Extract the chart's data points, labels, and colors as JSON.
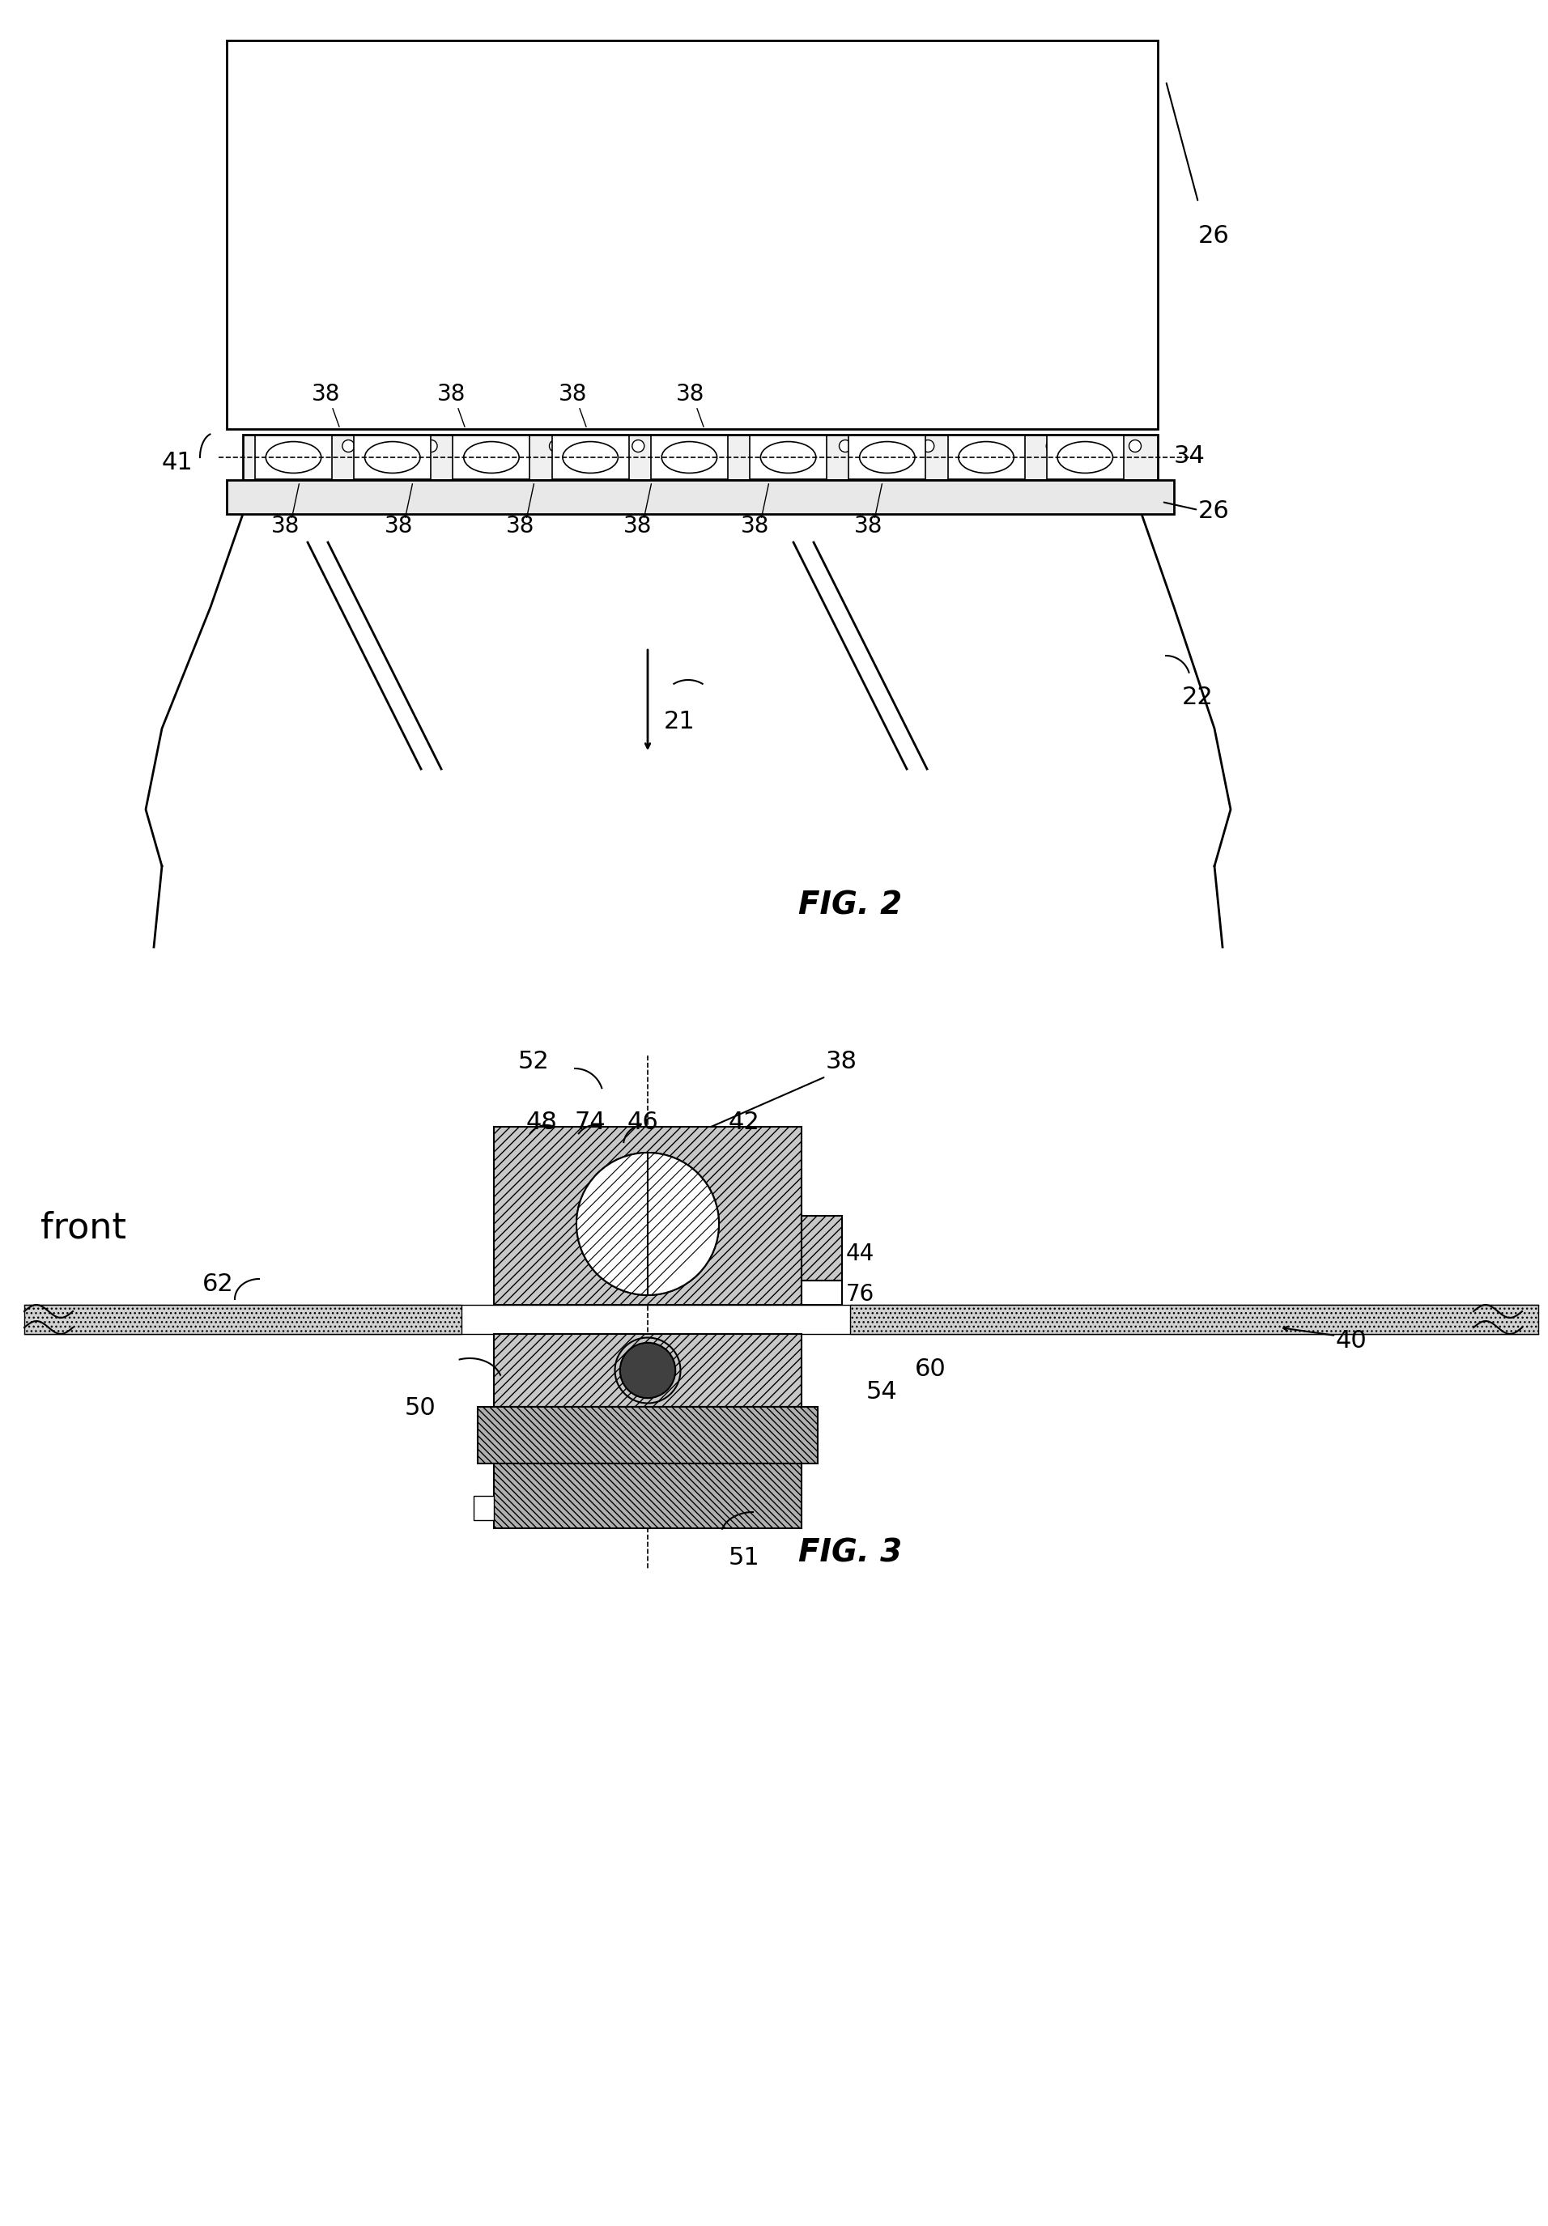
{
  "fig_width": 19.12,
  "fig_height": 27.5,
  "bg_color": "#ffffff",
  "line_color": "#000000",
  "hatch_color": "#000000",
  "fig2_label": "FIG. 2",
  "fig3_label": "FIG. 3",
  "front_label": "front",
  "labels": {
    "26_top": "26",
    "41": "41",
    "38_top1": "38",
    "38_top2": "38",
    "38_top3": "38",
    "38_top4": "38",
    "34": "34",
    "38_bot1": "38",
    "38_bot2": "38",
    "38_bot3": "38",
    "38_bot4": "38",
    "38_bot5": "38",
    "38_bot6": "38",
    "26_bot": "26",
    "22": "22",
    "21": "21",
    "52": "52",
    "38_fig3": "38",
    "42": "42",
    "46": "46",
    "74": "74",
    "48": "48",
    "76": "76",
    "44": "44",
    "62": "62",
    "40": "40",
    "50": "50",
    "54": "54",
    "60": "60",
    "51": "51"
  }
}
